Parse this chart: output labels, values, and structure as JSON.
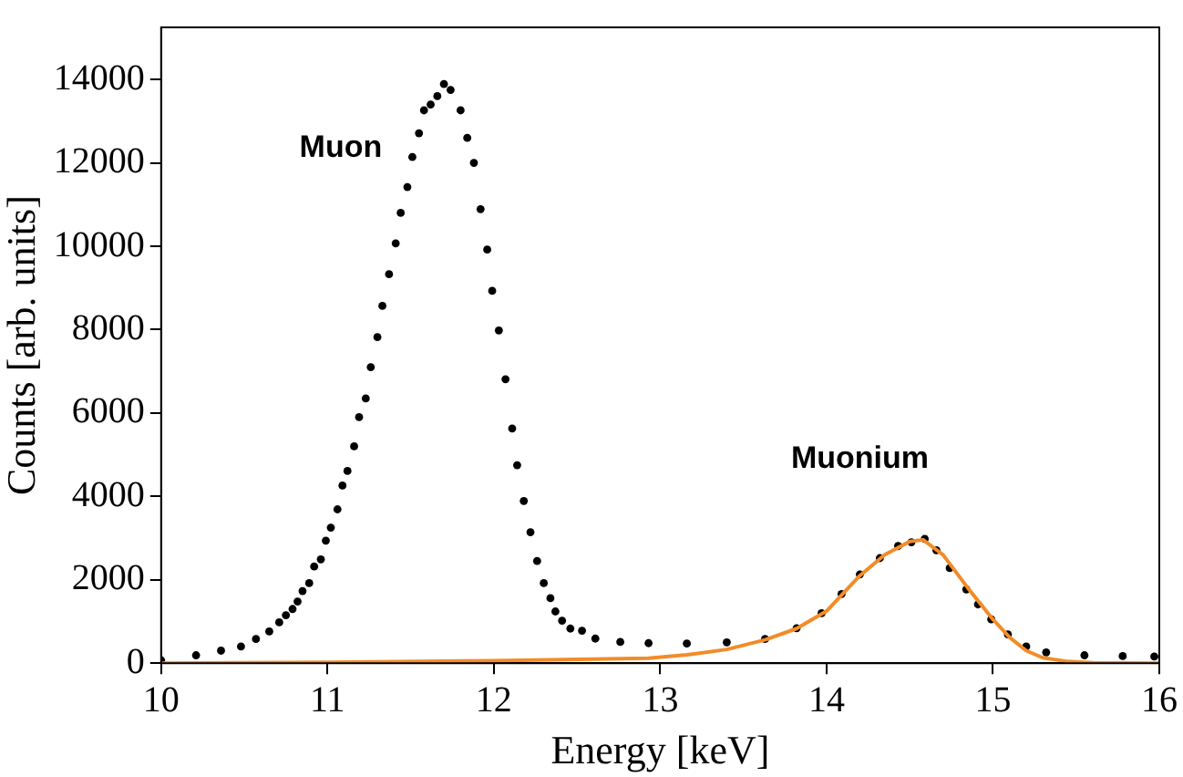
{
  "chart_data": {
    "type": "scatter",
    "xlabel": "Energy [keV]",
    "ylabel": "Counts [arb. units]",
    "xlim": [
      10,
      16
    ],
    "xticks": [
      10,
      11,
      12,
      13,
      14,
      15,
      16
    ],
    "ylim": [
      0,
      15250
    ],
    "yticks": [
      0,
      2000,
      4000,
      6000,
      8000,
      10000,
      12000,
      14000
    ],
    "grid": false,
    "legend": false,
    "annotations": [
      "Muon",
      "Muonium"
    ],
    "series": [
      {
        "type": "scatter",
        "color": "#000000",
        "marker": "circle",
        "x": [
          10.0,
          10.21,
          10.36,
          10.48,
          10.57,
          10.65,
          10.71,
          10.75,
          10.79,
          10.82,
          10.85,
          10.89,
          10.92,
          10.96,
          10.99,
          11.02,
          11.06,
          11.09,
          11.12,
          11.16,
          11.19,
          11.23,
          11.26,
          11.3,
          11.33,
          11.37,
          11.41,
          11.44,
          11.48,
          11.51,
          11.55,
          11.58,
          11.62,
          11.66,
          11.7,
          11.74,
          11.8,
          11.84,
          11.88,
          11.92,
          11.96,
          11.99,
          12.03,
          12.07,
          12.11,
          12.14,
          12.18,
          12.22,
          12.26,
          12.3,
          12.34,
          12.37,
          12.41,
          12.46,
          12.53,
          12.61,
          12.76,
          12.93,
          13.16,
          13.4,
          13.63,
          13.82,
          13.97,
          14.09,
          14.2,
          14.32,
          14.43,
          14.51,
          14.59,
          14.66,
          14.74,
          14.84,
          14.91,
          14.99,
          15.09,
          15.2,
          15.32,
          15.55,
          15.78,
          15.97
        ],
        "values": [
          70,
          190,
          300,
          400,
          580,
          760,
          980,
          1150,
          1300,
          1480,
          1730,
          1920,
          2320,
          2490,
          2940,
          3250,
          3690,
          4260,
          4610,
          5200,
          5900,
          6350,
          7100,
          7820,
          8570,
          9330,
          10070,
          10800,
          11420,
          12140,
          12710,
          13260,
          13400,
          13600,
          13890,
          13750,
          13260,
          12600,
          12000,
          10890,
          9920,
          8930,
          7980,
          6810,
          5630,
          4750,
          3890,
          3140,
          2450,
          1920,
          1560,
          1240,
          1020,
          830,
          780,
          590,
          510,
          480,
          470,
          500,
          580,
          840,
          1200,
          1660,
          2130,
          2520,
          2810,
          2900,
          2980,
          2710,
          2280,
          1770,
          1410,
          1050,
          690,
          400,
          260,
          190,
          170,
          160
        ]
      },
      {
        "type": "line",
        "color": "#f28c28",
        "marker": "none",
        "line_style": "solid",
        "x": [
          10,
          11,
          12,
          12.93,
          13.16,
          13.4,
          13.63,
          13.82,
          14.0,
          14.2,
          14.35,
          14.5,
          14.58,
          14.7,
          14.85,
          15.0,
          15.1,
          15.2,
          15.3,
          15.45,
          15.6,
          16
        ],
        "values": [
          0,
          20,
          60,
          120,
          200,
          330,
          560,
          830,
          1250,
          2100,
          2600,
          2920,
          2960,
          2600,
          1800,
          1050,
          620,
          300,
          130,
          40,
          10,
          0
        ]
      }
    ]
  }
}
